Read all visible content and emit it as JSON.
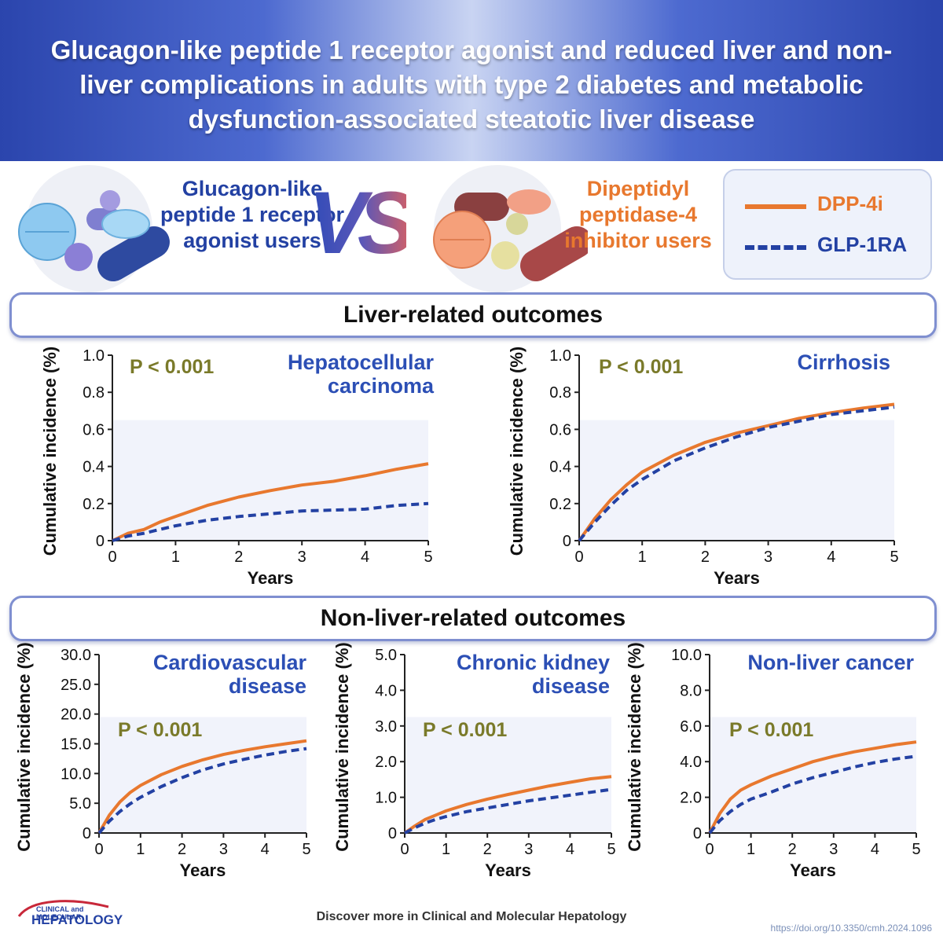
{
  "title": "Glucagon-like peptide 1 receptor agonist and reduced liver and non-liver complications in adults with type 2 diabetes and metabolic dysfunction-associated steatotic liver disease",
  "groups": {
    "glp1_label": "Glucagon-like peptide 1 receptor agonist users",
    "vs_label": "VS",
    "dpp4_label": "Dipeptidyl peptidase-4 inhibitor users"
  },
  "legend": {
    "dpp4": "DPP-4i",
    "glp1": "GLP-1RA"
  },
  "colors": {
    "dpp4": "#e8782e",
    "glp1": "#2341a3",
    "pvalue": "#7a7a2a",
    "chart_title": "#2c4fb5",
    "header": "#2b45ad"
  },
  "sections": {
    "liver": "Liver-related outcomes",
    "nonliver": "Non-liver-related outcomes"
  },
  "chart_data": [
    {
      "type": "line",
      "title": "Hepatocellular carcinoma",
      "pvalue": "P < 0.001",
      "xlabel": "Years",
      "ylabel": "Cumulative incidence (%)",
      "xlim": [
        0,
        5
      ],
      "ylim": [
        0,
        1.0
      ],
      "xticks": [
        "0",
        "1",
        "2",
        "3",
        "4",
        "5"
      ],
      "yticks": [
        "0",
        "0.2",
        "0.4",
        "0.6",
        "0.8",
        "1.0"
      ],
      "x": [
        0,
        0.25,
        0.5,
        0.75,
        1,
        1.5,
        2,
        2.5,
        3,
        3.5,
        4,
        4.5,
        5
      ],
      "series": [
        {
          "name": "DPP-4i",
          "values": [
            0,
            0.04,
            0.06,
            0.1,
            0.13,
            0.19,
            0.235,
            0.27,
            0.3,
            0.32,
            0.35,
            0.385,
            0.415
          ]
        },
        {
          "name": "GLP-1RA",
          "values": [
            0,
            0.025,
            0.04,
            0.06,
            0.08,
            0.11,
            0.13,
            0.145,
            0.16,
            0.165,
            0.17,
            0.19,
            0.2
          ]
        }
      ]
    },
    {
      "type": "line",
      "title": "Cirrhosis",
      "pvalue": "P < 0.001",
      "xlabel": "Years",
      "ylabel": "Cumulative incidence (%)",
      "xlim": [
        0,
        5
      ],
      "ylim": [
        0,
        1.0
      ],
      "xticks": [
        "0",
        "1",
        "2",
        "3",
        "4",
        "5"
      ],
      "yticks": [
        "0",
        "0.2",
        "0.4",
        "0.6",
        "0.8",
        "1.0"
      ],
      "x": [
        0,
        0.25,
        0.5,
        0.75,
        1,
        1.5,
        2,
        2.5,
        3,
        3.5,
        4,
        4.5,
        5
      ],
      "series": [
        {
          "name": "DPP-4i",
          "values": [
            0,
            0.12,
            0.22,
            0.3,
            0.37,
            0.46,
            0.53,
            0.58,
            0.62,
            0.66,
            0.69,
            0.715,
            0.735
          ]
        },
        {
          "name": "GLP-1RA",
          "values": [
            0,
            0.1,
            0.19,
            0.27,
            0.33,
            0.43,
            0.5,
            0.56,
            0.61,
            0.645,
            0.68,
            0.7,
            0.72
          ]
        }
      ]
    },
    {
      "type": "line",
      "title": "Cardiovascular disease",
      "pvalue": "P < 0.001",
      "xlabel": "Years",
      "ylabel": "Cumulative incidence (%)",
      "xlim": [
        0,
        5
      ],
      "ylim": [
        0,
        30
      ],
      "xticks": [
        "0",
        "1",
        "2",
        "3",
        "4",
        "5"
      ],
      "yticks": [
        "0",
        "5.0",
        "10.0",
        "15.0",
        "20.0",
        "25.0",
        "30.0"
      ],
      "x": [
        0,
        0.25,
        0.5,
        0.75,
        1,
        1.5,
        2,
        2.5,
        3,
        3.5,
        4,
        4.5,
        5
      ],
      "series": [
        {
          "name": "DPP-4i",
          "values": [
            0,
            3.0,
            5.2,
            6.8,
            8.0,
            9.8,
            11.2,
            12.3,
            13.2,
            13.9,
            14.5,
            15.0,
            15.5
          ]
        },
        {
          "name": "GLP-1RA",
          "values": [
            0,
            2.0,
            3.6,
            4.9,
            6.0,
            7.8,
            9.3,
            10.6,
            11.6,
            12.4,
            13.1,
            13.7,
            14.2
          ]
        }
      ]
    },
    {
      "type": "line",
      "title": "Chronic kidney disease",
      "pvalue": "P < 0.001",
      "xlabel": "Years",
      "ylabel": "Cumulative incidence (%)",
      "xlim": [
        0,
        5
      ],
      "ylim": [
        0,
        5.0
      ],
      "xticks": [
        "0",
        "1",
        "2",
        "3",
        "4",
        "5"
      ],
      "yticks": [
        "0",
        "1.0",
        "2.0",
        "3.0",
        "4.0",
        "5.0"
      ],
      "x": [
        0,
        0.25,
        0.5,
        0.75,
        1,
        1.5,
        2,
        2.5,
        3,
        3.5,
        4,
        4.5,
        5
      ],
      "series": [
        {
          "name": "DPP-4i",
          "values": [
            0,
            0.2,
            0.38,
            0.5,
            0.62,
            0.8,
            0.95,
            1.08,
            1.2,
            1.32,
            1.42,
            1.52,
            1.58
          ]
        },
        {
          "name": "GLP-1RA",
          "values": [
            0,
            0.15,
            0.28,
            0.38,
            0.46,
            0.6,
            0.7,
            0.8,
            0.9,
            0.98,
            1.06,
            1.14,
            1.22
          ]
        }
      ]
    },
    {
      "type": "line",
      "title": "Non-liver cancer",
      "pvalue": "P < 0.001",
      "xlabel": "Years",
      "ylabel": "Cumulative incidence (%)",
      "xlim": [
        0,
        5
      ],
      "ylim": [
        0,
        10.0
      ],
      "xticks": [
        "0",
        "1",
        "2",
        "3",
        "4",
        "5"
      ],
      "yticks": [
        "0",
        "2.0",
        "4.0",
        "6.0",
        "8.0",
        "10.0"
      ],
      "x": [
        0,
        0.25,
        0.5,
        0.75,
        1,
        1.5,
        2,
        2.5,
        3,
        3.5,
        4,
        4.5,
        5
      ],
      "series": [
        {
          "name": "DPP-4i",
          "values": [
            0,
            1.1,
            1.9,
            2.4,
            2.7,
            3.2,
            3.6,
            4.0,
            4.3,
            4.55,
            4.75,
            4.95,
            5.1
          ]
        },
        {
          "name": "GLP-1RA",
          "values": [
            0,
            0.7,
            1.2,
            1.6,
            1.9,
            2.3,
            2.75,
            3.1,
            3.4,
            3.7,
            3.95,
            4.15,
            4.3
          ]
        }
      ]
    }
  ],
  "footer": {
    "logo_top": "CLINICAL and MOLECULAR",
    "logo_bottom": "HEPATOLOGY",
    "discover": "Discover more in Clinical and Molecular Hepatology",
    "doi": "https://doi.org/10.3350/cmh.2024.1096"
  }
}
